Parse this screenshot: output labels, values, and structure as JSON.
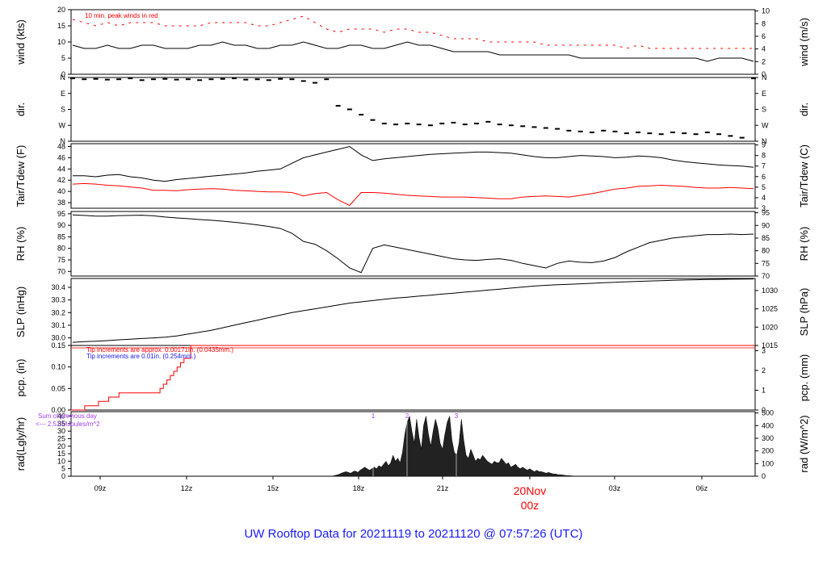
{
  "title": "UW Rooftop Data for 20211119  to  20211120 @ 07:57:26  (UTC)",
  "colors": {
    "black": "#000000",
    "red": "#ff0000",
    "blue": "#1a1aff",
    "purple": "#a040ff"
  },
  "chart_data": {
    "type": "line",
    "x_ticks": [
      "09z",
      "12z",
      "15z",
      "18z",
      "21z",
      "03z",
      "06z"
    ],
    "day_label": "20Nov",
    "day_hour": "00z",
    "panels": [
      {
        "id": "wind",
        "type": "line",
        "ylabel_left": "wind (kts)",
        "ylabel_right": "wind (m/s)",
        "yticks_left": [
          "0",
          "5",
          "10",
          "15",
          "20"
        ],
        "yticks_right": [
          "0",
          "2",
          "4",
          "6",
          "8",
          "10"
        ],
        "ylim": [
          0,
          20
        ],
        "note": "10 min. peak winds in red",
        "series": [
          {
            "color": "#000000",
            "values": [
              9,
              8,
              8,
              9,
              8,
              8,
              9,
              9,
              8,
              8,
              8,
              9,
              9,
              10,
              9,
              9,
              8,
              8,
              9,
              9,
              10,
              9,
              8,
              8,
              9,
              9,
              8,
              8,
              9,
              10,
              9,
              9,
              8,
              7,
              7,
              7,
              7,
              6,
              6,
              6,
              6,
              6,
              6,
              6,
              5,
              5,
              5,
              5,
              5,
              5,
              5,
              5,
              5,
              5,
              5,
              4,
              5,
              5,
              5,
              4
            ]
          },
          {
            "color": "#ff0000",
            "style": "dash",
            "values": [
              17,
              16,
              15,
              16,
              15,
              16,
              16,
              16,
              15,
              15,
              15,
              15,
              16,
              16,
              16,
              16,
              15,
              15,
              16,
              17,
              18,
              16,
              14,
              13,
              14,
              14,
              14,
              13,
              14,
              14,
              13,
              13,
              12,
              11,
              11,
              11,
              10,
              10,
              10,
              10,
              10,
              9,
              9,
              9,
              9,
              9,
              9,
              9,
              8,
              9,
              8,
              8,
              8,
              8,
              8,
              8,
              8,
              8,
              8,
              8
            ]
          }
        ]
      },
      {
        "id": "dir",
        "type": "scatter",
        "ylabel_left": "dir.",
        "ylabel_right": "dir.",
        "yticks_left": [
          "N",
          "W",
          "S",
          "E",
          "N"
        ],
        "yticks_right": [
          "N",
          "W",
          "S",
          "E",
          "N"
        ],
        "ylim": [
          0,
          360
        ],
        "series": [
          {
            "color": "#000000",
            "values": [
              355,
              350,
              352,
              348,
              350,
              355,
              345,
              350,
              352,
              348,
              350,
              345,
              350,
              352,
              355,
              348,
              350,
              345,
              352,
              350,
              340,
              330,
              350,
              200,
              180,
              150,
              120,
              100,
              95,
              100,
              95,
              90,
              100,
              105,
              95,
              100,
              110,
              95,
              90,
              85,
              80,
              75,
              70,
              60,
              55,
              50,
              60,
              55,
              45,
              50,
              45,
              40,
              50,
              45,
              40,
              50,
              40,
              30,
              20,
              355
            ]
          }
        ]
      },
      {
        "id": "temp",
        "type": "line",
        "ylabel_left": "Tair/Tdew (F)",
        "ylabel_right": "Tair/Tdew (C)",
        "yticks_left": [
          "38",
          "40",
          "42",
          "44",
          "46",
          "48"
        ],
        "yticks_right": [
          "3",
          "4",
          "5",
          "6",
          "7",
          "8",
          "9"
        ],
        "ylim": [
          37,
          48.5
        ],
        "series": [
          {
            "color": "#000000",
            "values": [
              42.8,
              42.8,
              42.6,
              42.9,
              43.0,
              42.6,
              42.4,
              42.0,
              41.8,
              42.1,
              42.3,
              42.5,
              42.7,
              42.9,
              43.1,
              43.3,
              43.6,
              43.8,
              44.0,
              45.0,
              46.0,
              46.5,
              47.0,
              47.5,
              48.0,
              46.5,
              45.5,
              45.8,
              46.0,
              46.2,
              46.4,
              46.6,
              46.7,
              46.8,
              46.9,
              47.0,
              47.0,
              46.9,
              46.8,
              46.5,
              46.2,
              46.0,
              46.0,
              46.2,
              46.4,
              46.3,
              46.2,
              46.0,
              46.1,
              46.3,
              46.2,
              46.0,
              45.6,
              45.3,
              45.1,
              44.9,
              44.7,
              44.6,
              44.5,
              44.3
            ]
          },
          {
            "color": "#ff0000",
            "values": [
              41.3,
              41.4,
              41.3,
              41.1,
              41.0,
              40.8,
              40.6,
              40.2,
              40.2,
              40.1,
              40.3,
              40.4,
              40.5,
              40.4,
              40.2,
              40.1,
              40.0,
              39.9,
              39.9,
              39.8,
              39.2,
              39.6,
              39.8,
              38.5,
              37.5,
              39.8,
              39.8,
              39.7,
              39.5,
              39.3,
              39.2,
              39.1,
              39.0,
              39.0,
              39.0,
              38.9,
              38.8,
              38.7,
              38.7,
              39.0,
              39.1,
              39.2,
              39.1,
              39.0,
              39.3,
              39.6,
              40.0,
              40.4,
              40.6,
              40.9,
              41.0,
              41.1,
              41.0,
              40.9,
              40.7,
              40.6,
              40.6,
              40.7,
              40.6,
              40.5
            ]
          }
        ]
      },
      {
        "id": "rh",
        "type": "line",
        "ylabel_left": "RH (%)",
        "ylabel_right": "RH (%)",
        "yticks_left": [
          "70",
          "75",
          "80",
          "85",
          "90",
          "95"
        ],
        "yticks_right": [
          "70",
          "75",
          "80",
          "85",
          "90",
          "95"
        ],
        "ylim": [
          68,
          96
        ],
        "series": [
          {
            "color": "#000000",
            "values": [
              94.5,
              94.3,
              94.0,
              94.0,
              94.2,
              94.3,
              94.4,
              94.1,
              93.6,
              93.2,
              92.9,
              92.5,
              92.2,
              91.8,
              91.3,
              90.8,
              90.2,
              89.5,
              88.6,
              86.5,
              83.0,
              81.8,
              79.0,
              75.5,
              71.5,
              69.5,
              80.0,
              81.5,
              80.5,
              79.5,
              78.5,
              77.5,
              76.5,
              75.5,
              75.0,
              74.8,
              75.2,
              75.5,
              74.8,
              73.5,
              72.5,
              71.5,
              73.5,
              74.5,
              74.0,
              73.8,
              74.5,
              76.0,
              78.5,
              80.5,
              82.5,
              83.5,
              84.5,
              85.0,
              85.5,
              86.0,
              86.0,
              86.2,
              86.0,
              86.2
            ]
          }
        ]
      },
      {
        "id": "slp",
        "type": "line",
        "ylabel_left": "SLP (inHg)",
        "ylabel_right": "SLP (hPa)",
        "yticks_left": [
          "30.0",
          "30.1",
          "30.2",
          "30.3",
          "30.4"
        ],
        "yticks_right": [
          "1015",
          "1020",
          "1025",
          "1030"
        ],
        "ylim": [
          29.94,
          30.47
        ],
        "series": [
          {
            "color": "#000000",
            "values": [
              29.965,
              29.97,
              29.973,
              29.978,
              29.985,
              29.99,
              29.995,
              30.0,
              30.005,
              30.015,
              30.03,
              30.045,
              30.06,
              30.08,
              30.1,
              30.12,
              30.14,
              30.16,
              30.18,
              30.2,
              30.215,
              30.23,
              30.245,
              30.26,
              30.275,
              30.285,
              30.295,
              30.305,
              30.315,
              30.322,
              30.33,
              30.338,
              30.346,
              30.354,
              30.362,
              30.37,
              30.378,
              30.386,
              30.394,
              30.402,
              30.41,
              30.416,
              30.42,
              30.424,
              30.428,
              30.432,
              30.436,
              30.44,
              30.444,
              30.447,
              30.45,
              30.453,
              30.456,
              30.458,
              30.46,
              30.462,
              30.463,
              30.464,
              30.465,
              30.466
            ]
          }
        ]
      },
      {
        "id": "pcp",
        "type": "line",
        "ylabel_left": "pcp. (in)",
        "ylabel_right": "pcp. (mm)",
        "yticks_left": [
          "0.00",
          "0.05",
          "0.10",
          "0.15"
        ],
        "yticks_right": [
          "0",
          "1",
          "2",
          "3"
        ],
        "ylim": [
          0,
          0.15
        ],
        "note1": "Tip increments are approx. 0.00171in. (0.0435mm.)",
        "note2": "Tip increments are 0.01in. (0.254mm.)",
        "series": [
          {
            "color": "#ff0000",
            "step": true,
            "x": [
              0,
              0.02,
              0.02,
              0.04,
              0.04,
              0.055,
              0.055,
              0.07,
              0.07,
              0.13,
              0.13,
              0.135,
              0.135,
              0.14,
              0.14,
              0.145,
              0.145,
              0.15,
              0.15,
              0.155,
              0.155,
              0.16,
              0.16,
              0.165,
              0.165,
              0.175,
              0.175,
              1.0
            ],
            "values": [
              0.0,
              0.0,
              0.01,
              0.01,
              0.02,
              0.02,
              0.03,
              0.03,
              0.04,
              0.04,
              0.05,
              0.05,
              0.06,
              0.06,
              0.07,
              0.07,
              0.08,
              0.08,
              0.09,
              0.09,
              0.1,
              0.1,
              0.11,
              0.11,
              0.12,
              0.12,
              0.15,
              0.15
            ]
          }
        ]
      },
      {
        "id": "rad",
        "type": "area",
        "ylabel_left": "rad(Lgly/hr)",
        "ylabel_right": "rad (W/m^2)",
        "yticks_left": [
          "0",
          "5",
          "10",
          "15",
          "20",
          "25",
          "30",
          "35",
          "40"
        ],
        "yticks_right": [
          "0",
          "100",
          "200",
          "300",
          "400",
          "500"
        ],
        "ylim": [
          0,
          43
        ],
        "note1": "Sum of previous day",
        "note2": "<--- 2.51 MJoules/m^2",
        "markers": [
          "1",
          "2",
          "3"
        ],
        "series": [
          {
            "color": "#000000",
            "values": [
              0,
              0,
              0,
              0,
              0,
              0,
              0,
              0,
              0,
              0,
              0,
              0,
              0,
              0,
              0,
              0,
              0,
              0,
              0,
              0,
              0,
              0,
              0,
              0,
              0,
              0,
              0,
              0,
              0,
              0,
              0,
              0,
              0,
              0,
              0,
              0,
              0,
              0,
              0,
              0,
              0,
              0,
              0,
              0,
              0,
              0,
              0,
              0,
              0,
              0,
              0,
              0,
              0,
              0,
              0,
              0,
              0,
              0,
              0,
              0,
              0,
              0,
              0,
              0,
              0,
              0,
              0,
              0,
              0,
              0,
              0,
              0,
              0,
              0,
              0,
              0,
              0,
              0,
              0,
              0,
              0,
              0,
              0,
              0,
              0,
              0,
              0,
              0,
              0,
              0,
              0,
              0,
              0,
              0,
              0,
              0,
              0,
              0,
              0,
              0,
              0,
              0,
              0,
              0,
              0,
              0,
              0,
              0,
              0,
              0,
              0,
              0.4,
              0.8,
              1.2,
              2,
              2.5,
              3,
              2.5,
              2,
              3,
              3.5,
              2.5,
              4,
              5,
              6,
              5,
              4,
              5,
              6,
              5,
              7,
              6,
              8,
              10,
              7,
              9,
              14,
              10,
              12,
              9,
              16,
              28,
              36,
              40,
              30,
              22,
              38,
              26,
              18,
              34,
              40,
              28,
              20,
              30,
              38,
              32,
              22,
              18,
              28,
              36,
              40,
              24,
              16,
              14,
              22,
              38,
              24,
              14,
              12,
              18,
              14,
              10,
              12,
              11,
              14,
              12,
              10,
              9,
              8,
              10,
              9,
              9,
              12,
              10,
              8,
              9,
              6,
              7,
              8,
              6,
              5,
              6,
              5,
              4,
              5,
              4,
              3,
              4,
              3,
              3,
              2.5,
              2,
              2.5,
              2,
              1.5,
              1.5,
              1,
              1,
              0.8,
              0.6,
              0.4,
              0.3,
              0.2,
              0.1,
              0,
              0,
              0,
              0,
              0,
              0,
              0,
              0,
              0,
              0,
              0,
              0,
              0,
              0,
              0,
              0,
              0,
              0,
              0,
              0,
              0,
              0,
              0,
              0,
              0,
              0,
              0,
              0,
              0,
              0,
              0,
              0,
              0,
              0,
              0,
              0,
              0,
              0,
              0,
              0,
              0,
              0,
              0,
              0,
              0,
              0,
              0,
              0,
              0,
              0,
              0,
              0,
              0,
              0,
              0,
              0,
              0,
              0,
              0,
              0,
              0,
              0,
              0,
              0,
              0,
              0,
              0,
              0,
              0,
              0,
              0,
              0,
              0,
              0,
              0,
              0
            ]
          }
        ]
      }
    ]
  }
}
